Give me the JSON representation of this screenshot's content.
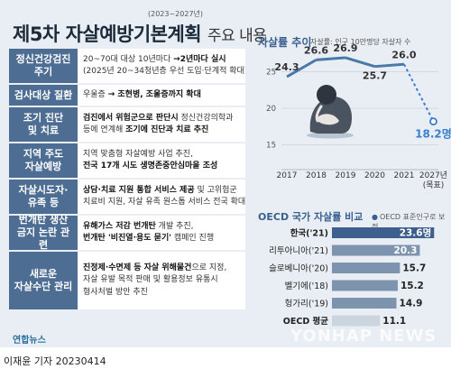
{
  "title": {
    "sub": "(2023~2027년)",
    "main": "제5차 자살예방기본계획",
    "suffix": "주요 내용"
  },
  "measures": [
    {
      "label": "정신건강검진\n주기",
      "lines": [
        [
          {
            "t": "20~70대 대상 10년마다 "
          },
          {
            "t": "→2년마다 실시",
            "b": true
          }
        ],
        [
          {
            "t": "(2025년 20~34청년층 우선 도입·단계적 확대)"
          }
        ]
      ]
    },
    {
      "label": "검사대상 질환",
      "lines": [
        [
          {
            "t": "우울증 "
          },
          {
            "t": "→ 조현병, 조울증까지 확대",
            "b": true
          }
        ]
      ]
    },
    {
      "label": "조기 진단\n및 치료",
      "lines": [
        [
          {
            "t": "검진에서 위험군으로 판단시",
            "b": true
          },
          {
            "t": " 정신건강의학과"
          }
        ],
        [
          {
            "t": "등에 연계해 "
          },
          {
            "t": "조기에 진단과 치료 추진",
            "b": true
          }
        ]
      ]
    },
    {
      "label": "지역 주도\n자살예방",
      "lines": [
        [
          {
            "t": "지역 맞춤형 자살예방 사업 추진,"
          }
        ],
        [
          {
            "t": "전국 17개 시도 생명존중안심마을 조성",
            "b": true
          }
        ]
      ]
    },
    {
      "label": "자살시도자·\n유족 등",
      "lines": [
        [
          {
            "t": "상담·치료 지원 통합 서비스 제공",
            "b": true
          },
          {
            "t": " 및 고위험군"
          }
        ],
        [
          {
            "t": "치료비 지원, 자살 유족 원스톱 서비스 전국 확대"
          }
        ]
      ]
    },
    {
      "label": "번개탄 생산\n금지 논란 관련",
      "lines": [
        [
          {
            "t": "유해가스 저감 번개탄",
            "b": true
          },
          {
            "t": " 개발 추진,"
          }
        ],
        [
          {
            "t": "번개탄 '비진열·용도 묻기'",
            "b": true
          },
          {
            "t": " 캠페인 진행"
          }
        ]
      ]
    },
    {
      "label": "새로운\n자살수단 관리",
      "lines": [
        [
          {
            "t": "진정제·수면제 등 자살 위해물건",
            "b": true
          },
          {
            "t": "으로 지정,"
          }
        ],
        [
          {
            "t": "자살 유발 목적 판매 및 활용정보 유통시"
          }
        ],
        [
          {
            "t": "형사처벌 방안 추진"
          }
        ]
      ]
    }
  ],
  "chart_data": [
    {
      "type": "line",
      "title": "자살률 추이",
      "note": "자살률: 인구 10만명당 자살자 수",
      "categories": [
        "2017",
        "2018",
        "2019",
        "2020",
        "2021",
        "2027년\n(목표)"
      ],
      "values": [
        24.3,
        26.6,
        26.9,
        25.7,
        26.0,
        18.2
      ],
      "value_labels": [
        "24.3",
        "26.6",
        "26.9",
        "25.7",
        "26.0",
        "18.2명"
      ],
      "yticks": [
        "25",
        "20",
        "15"
      ],
      "ylim": [
        12,
        28
      ],
      "target_color": "#3a7fd0",
      "line_color": "#4a78a8",
      "grid": true
    },
    {
      "type": "bar",
      "orientation": "horizontal",
      "title": "OECD 국가 자살률 비교",
      "note": "OECD 표준인구로 보정",
      "categories": [
        "한국('21)",
        "리투아니아('21)",
        "슬로베니아('20)",
        "벨기에('18)",
        "헝가리('19)",
        "OECD 평균"
      ],
      "values": [
        23.6,
        20.3,
        15.7,
        15.2,
        14.9,
        11.1
      ],
      "value_labels": [
        "23.6명",
        "20.3",
        "15.7",
        "15.2",
        "14.9",
        "11.1"
      ],
      "xlim": [
        0,
        25
      ],
      "highlight_color": "#3d5f8e",
      "bar_color": "#7e93ae",
      "avg_color": "#cbd5e0"
    }
  ],
  "footer": {
    "logo": "연합뉴스",
    "byline": "이재윤 기자  20230414",
    "watermark": "YONHAP NEWS"
  }
}
